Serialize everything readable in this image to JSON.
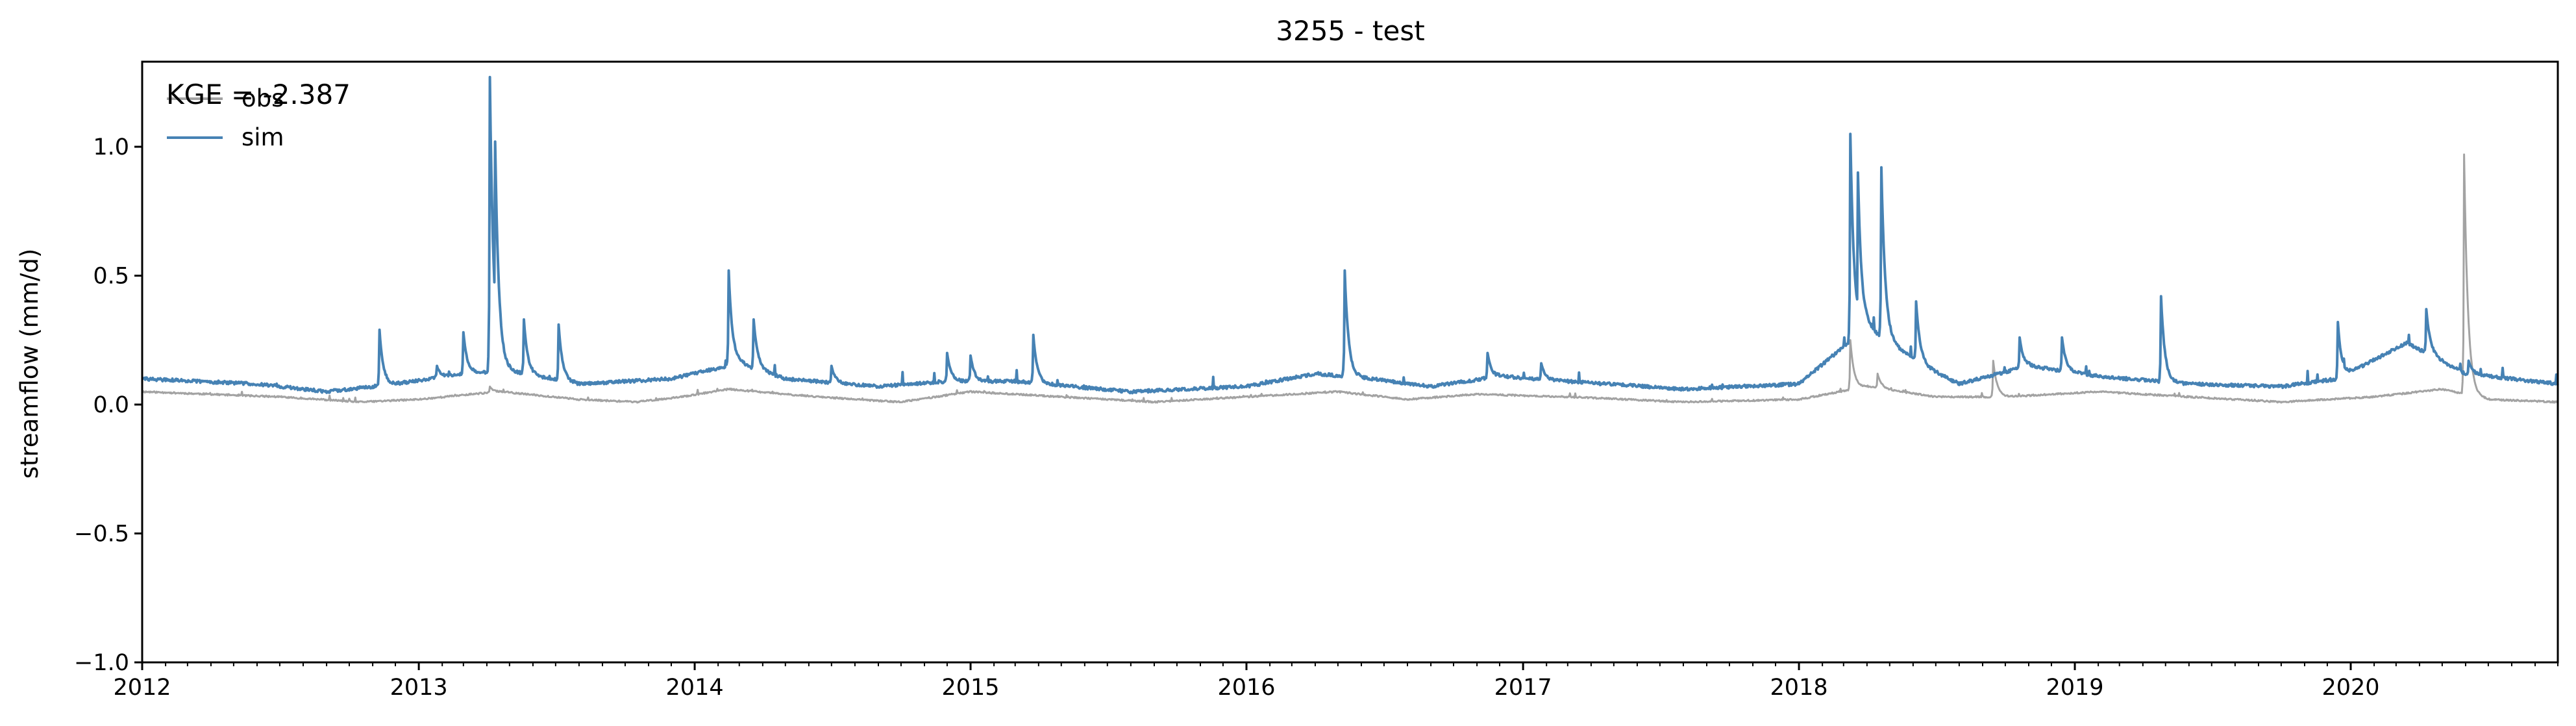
{
  "chart_data": {
    "type": "line",
    "title": "3255 - test",
    "xlabel": "",
    "ylabel": "streamflow (mm/d)",
    "annotation": "KGE = -2.387",
    "xlim": [
      "2012-01-01",
      "2020-10-01"
    ],
    "ylim": [
      -1.0,
      1.33
    ],
    "yticks": [
      -1.0,
      -0.5,
      0.0,
      0.5,
      1.0
    ],
    "ytick_labels": [
      "−1.0",
      "−0.5",
      "0.0",
      "0.5",
      "1.0"
    ],
    "xtick_labels": [
      "2012",
      "2013",
      "2014",
      "2015",
      "2016",
      "2017",
      "2018",
      "2019",
      "2020"
    ],
    "grid": false,
    "legend_position": "top-left",
    "series": [
      {
        "name": "obs",
        "color": "#a3a3a3",
        "base": [
          [
            "2012-01-01",
            0.05
          ],
          [
            "2012-07-01",
            0.03
          ],
          [
            "2012-10-15",
            0.01
          ],
          [
            "2013-01-01",
            0.02
          ],
          [
            "2013-03-10",
            0.04
          ],
          [
            "2013-04-20",
            0.05
          ],
          [
            "2013-08-01",
            0.02
          ],
          [
            "2013-10-15",
            0.01
          ],
          [
            "2013-12-15",
            0.03
          ],
          [
            "2014-02-15",
            0.06
          ],
          [
            "2014-05-01",
            0.04
          ],
          [
            "2014-08-01",
            0.02
          ],
          [
            "2014-10-01",
            0.01
          ],
          [
            "2015-01-01",
            0.05
          ],
          [
            "2015-05-01",
            0.03
          ],
          [
            "2015-09-01",
            0.01
          ],
          [
            "2016-01-01",
            0.03
          ],
          [
            "2016-05-01",
            0.05
          ],
          [
            "2016-08-01",
            0.02
          ],
          [
            "2016-11-01",
            0.04
          ],
          [
            "2017-03-01",
            0.03
          ],
          [
            "2017-08-01",
            0.01
          ],
          [
            "2018-01-01",
            0.02
          ],
          [
            "2018-04-01",
            0.07
          ],
          [
            "2018-07-01",
            0.03
          ],
          [
            "2018-10-01",
            0.03
          ],
          [
            "2019-02-01",
            0.05
          ],
          [
            "2019-06-01",
            0.03
          ],
          [
            "2019-10-01",
            0.01
          ],
          [
            "2020-02-01",
            0.03
          ],
          [
            "2020-05-01",
            0.06
          ],
          [
            "2020-07-01",
            0.02
          ],
          [
            "2020-10-01",
            0.01
          ]
        ],
        "peaks": [
          [
            "2013-04-05",
            0.07
          ],
          [
            "2014-02-20",
            0.03
          ],
          [
            "2015-03-25",
            0.02
          ],
          [
            "2016-05-10",
            0.04
          ],
          [
            "2018-03-10",
            0.25
          ],
          [
            "2018-04-15",
            0.12
          ],
          [
            "2018-09-15",
            0.17
          ],
          [
            "2020-05-30",
            0.97
          ]
        ]
      },
      {
        "name": "sim",
        "color": "#4682b4",
        "base": [
          [
            "2012-01-01",
            0.1
          ],
          [
            "2012-06-01",
            0.08
          ],
          [
            "2012-09-01",
            0.05
          ],
          [
            "2012-12-01",
            0.08
          ],
          [
            "2013-03-01",
            0.12
          ],
          [
            "2013-05-01",
            0.13
          ],
          [
            "2013-08-01",
            0.08
          ],
          [
            "2013-12-01",
            0.1
          ],
          [
            "2014-03-01",
            0.16
          ],
          [
            "2014-05-01",
            0.1
          ],
          [
            "2014-09-01",
            0.07
          ],
          [
            "2014-12-01",
            0.09
          ],
          [
            "2015-03-01",
            0.09
          ],
          [
            "2015-08-01",
            0.05
          ],
          [
            "2016-01-01",
            0.07
          ],
          [
            "2016-04-01",
            0.12
          ],
          [
            "2016-06-15",
            0.1
          ],
          [
            "2016-09-01",
            0.07
          ],
          [
            "2016-12-01",
            0.11
          ],
          [
            "2017-03-01",
            0.09
          ],
          [
            "2017-08-01",
            0.06
          ],
          [
            "2018-01-01",
            0.08
          ],
          [
            "2018-04-01",
            0.3
          ],
          [
            "2018-06-15",
            0.15
          ],
          [
            "2018-08-01",
            0.08
          ],
          [
            "2018-11-01",
            0.15
          ],
          [
            "2019-02-01",
            0.11
          ],
          [
            "2019-06-01",
            0.08
          ],
          [
            "2019-10-01",
            0.07
          ],
          [
            "2019-12-15",
            0.1
          ],
          [
            "2020-03-15",
            0.24
          ],
          [
            "2020-06-01",
            0.12
          ],
          [
            "2020-10-01",
            0.08
          ]
        ],
        "peaks": [
          [
            "2012-11-10",
            0.29
          ],
          [
            "2013-01-25",
            0.15
          ],
          [
            "2013-03-01",
            0.28
          ],
          [
            "2013-04-05",
            1.27
          ],
          [
            "2013-04-12",
            1.02
          ],
          [
            "2013-05-20",
            0.33
          ],
          [
            "2013-07-05",
            0.31
          ],
          [
            "2014-02-15",
            0.52
          ],
          [
            "2014-03-20",
            0.33
          ],
          [
            "2014-07-01",
            0.15
          ],
          [
            "2014-12-01",
            0.2
          ],
          [
            "2015-01-01",
            0.19
          ],
          [
            "2015-03-25",
            0.27
          ],
          [
            "2016-05-10",
            0.52
          ],
          [
            "2016-11-15",
            0.2
          ],
          [
            "2017-01-25",
            0.16
          ],
          [
            "2018-03-10",
            1.05
          ],
          [
            "2018-03-20",
            0.9
          ],
          [
            "2018-04-20",
            0.92
          ],
          [
            "2018-06-05",
            0.4
          ],
          [
            "2018-10-20",
            0.26
          ],
          [
            "2018-12-15",
            0.26
          ],
          [
            "2019-04-25",
            0.42
          ],
          [
            "2019-12-15",
            0.32
          ],
          [
            "2020-04-10",
            0.37
          ],
          [
            "2020-06-05",
            0.17
          ]
        ]
      }
    ]
  }
}
